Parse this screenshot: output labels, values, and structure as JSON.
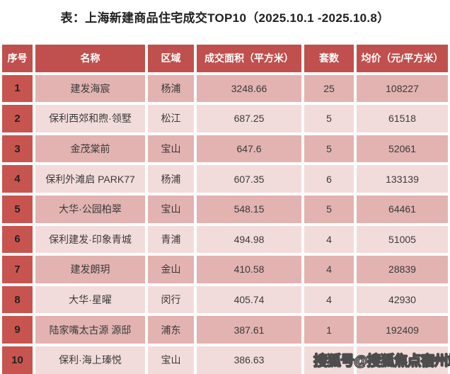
{
  "title": "表：上海新建商品住宅成交TOP10（2025.10.1 -2025.10.8）",
  "chart_data": {
    "type": "table",
    "title": "表：上海新建商品住宅成交TOP10（2025.10.1 -2025.10.8）",
    "columns": [
      "序号",
      "名称",
      "区域",
      "成交面积（平方米）",
      "套数",
      "均价（元/平方米）"
    ],
    "rows": [
      [
        "1",
        "建发海宸",
        "杨浦",
        "3248.66",
        "25",
        "108227"
      ],
      [
        "2",
        "保利西郊和煦·领墅",
        "松江",
        "687.25",
        "5",
        "61518"
      ],
      [
        "3",
        "金茂棠前",
        "宝山",
        "647.6",
        "5",
        "52061"
      ],
      [
        "4",
        "保利外滩启 PARK77",
        "杨浦",
        "607.35",
        "6",
        "133139"
      ],
      [
        "5",
        "大华·公园柏翠",
        "宝山",
        "548.15",
        "5",
        "64461"
      ],
      [
        "6",
        "保利建发·印象青城",
        "青浦",
        "494.98",
        "4",
        "51005"
      ],
      [
        "7",
        "建发朗玥",
        "金山",
        "410.58",
        "4",
        "28839"
      ],
      [
        "8",
        "大华·星曜",
        "闵行",
        "405.74",
        "4",
        "42930"
      ],
      [
        "9",
        "陆家嘴太古源 源邸",
        "浦东",
        "387.61",
        "1",
        "192409"
      ],
      [
        "10",
        "保利·海上瑧悦",
        "宝山",
        "386.63",
        "",
        ""
      ]
    ]
  },
  "watermark": "搜狐号@搜狐焦点宿州站",
  "colors": {
    "header_bg": "#c0504d",
    "rank_bg": "#c85450",
    "row_odd_bg": "#e2b3b1",
    "row_even_bg": "#f2dcdb",
    "header_text": "#ffffff",
    "cell_text": "#3a3a3a",
    "rank_text": "#222222",
    "title_text": "#1f1f1f",
    "watermark_fill": "#ffffff",
    "watermark_outline": "#4d4d4d"
  }
}
